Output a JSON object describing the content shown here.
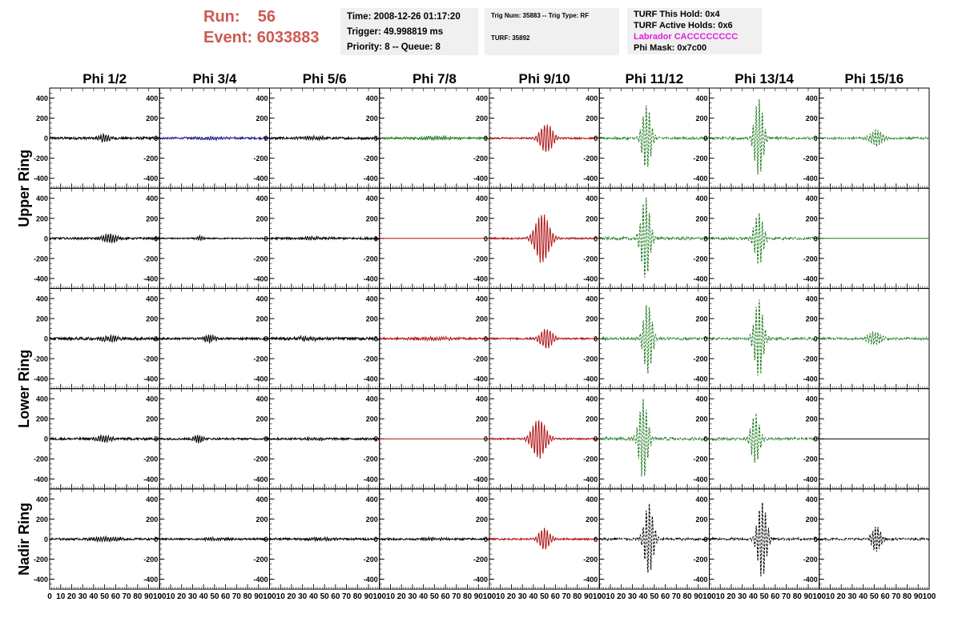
{
  "header": {
    "run_label": "Run:",
    "run_value": "56",
    "event_label": "Event:",
    "event_value": "6033883"
  },
  "info_time": {
    "time": "Time: 2008-12-26 01:17:20",
    "trigger": "Trigger: 49.998819 ms",
    "priority": "Priority: 8 -- Queue: 8"
  },
  "info_trig": {
    "trig": "Trig Num: 35883 -- Trig Type: RF",
    "turf": "TURF: 35892"
  },
  "info_turf": {
    "this_hold": "TURF This Hold: 0x4",
    "active_holds": "TURF Active Holds: 0x6",
    "labrador": "Labrador CACCCCCCCC",
    "phi_mask": "Phi Mask: 0x7c00"
  },
  "colors": {
    "accent_red": "#cc5a52",
    "labrador": "#e020e0",
    "box_bg": "#f0f0f0",
    "trace_black": "#000000",
    "trace_blue": "#1a1a8c",
    "trace_green": "#1e7a1e",
    "trace_red": "#b01515"
  },
  "chart_data": {
    "type": "line",
    "columns": [
      "Phi 1/2",
      "Phi 3/4",
      "Phi 5/6",
      "Phi 7/8",
      "Phi 9/10",
      "Phi 11/12",
      "Phi 13/14",
      "Phi 15/16"
    ],
    "ring_labels": [
      "Upper Ring",
      "Lower Ring",
      "Nadir Ring"
    ],
    "row_ring": [
      "Upper Ring",
      "Upper Ring",
      "Lower Ring",
      "Lower Ring",
      "Nadir Ring"
    ],
    "xlim": [
      0,
      100
    ],
    "ylim": [
      -500,
      500
    ],
    "yticks": [
      400,
      200,
      0,
      -200,
      -400
    ],
    "xtick_labels": [
      "0",
      "10",
      "20",
      "30",
      "40",
      "50",
      "60",
      "70",
      "80",
      "90",
      "100"
    ],
    "grid": false,
    "cells": [
      [
        {
          "color": "black",
          "style": "solid",
          "noise": 12,
          "amp": 40,
          "center": 50,
          "width": 6,
          "period": 2.2
        },
        {
          "color": "blue",
          "style": "solid",
          "noise": 10,
          "amp": 12,
          "center": 50,
          "width": 20,
          "period": 2.0
        },
        {
          "color": "black",
          "style": "solid",
          "noise": 11,
          "amp": 15,
          "center": 40,
          "width": 15,
          "period": 2.0
        },
        {
          "color": "green",
          "style": "solid",
          "noise": 10,
          "amp": 15,
          "center": 50,
          "width": 20,
          "period": 2.0
        },
        {
          "color": "red",
          "style": "solid",
          "noise": 8,
          "amp": 145,
          "center": 52,
          "width": 7,
          "period": 2.6
        },
        {
          "color": "green",
          "style": "dashed",
          "noise": 12,
          "amp": 330,
          "center": 43,
          "width": 5,
          "period": 2.8
        },
        {
          "color": "green",
          "style": "dashed",
          "noise": 12,
          "amp": 400,
          "center": 45,
          "width": 5,
          "period": 2.8
        },
        {
          "color": "green",
          "style": "dashed",
          "noise": 10,
          "amp": 80,
          "center": 52,
          "width": 7,
          "period": 2.4
        }
      ],
      [
        {
          "color": "black",
          "style": "solid",
          "noise": 10,
          "amp": 45,
          "center": 55,
          "width": 8,
          "period": 2.2
        },
        {
          "color": "black",
          "style": "solid",
          "noise": 6,
          "amp": 25,
          "center": 37,
          "width": 4,
          "period": 2.0
        },
        {
          "color": "black",
          "style": "solid",
          "noise": 10,
          "amp": 12,
          "center": 40,
          "width": 15,
          "period": 2.0
        },
        {
          "color": "red",
          "style": "solid",
          "noise": 0,
          "amp": 0,
          "center": 50,
          "width": 10,
          "period": 2.0
        },
        {
          "color": "red",
          "style": "solid",
          "noise": 8,
          "amp": 250,
          "center": 48,
          "width": 8,
          "period": 2.6
        },
        {
          "color": "green",
          "style": "dashed",
          "noise": 14,
          "amp": 410,
          "center": 42,
          "width": 5,
          "period": 2.8
        },
        {
          "color": "green",
          "style": "dashed",
          "noise": 12,
          "amp": 270,
          "center": 45,
          "width": 5,
          "period": 2.8
        },
        {
          "color": "green",
          "style": "solid",
          "noise": 0,
          "amp": 0,
          "center": 50,
          "width": 10,
          "period": 2.0
        }
      ],
      [
        {
          "color": "black",
          "style": "solid",
          "noise": 14,
          "amp": 30,
          "center": 55,
          "width": 10,
          "period": 2.2
        },
        {
          "color": "black",
          "style": "solid",
          "noise": 10,
          "amp": 40,
          "center": 45,
          "width": 6,
          "period": 2.0
        },
        {
          "color": "black",
          "style": "solid",
          "noise": 14,
          "amp": 20,
          "center": 35,
          "width": 12,
          "period": 2.0
        },
        {
          "color": "red",
          "style": "solid",
          "noise": 10,
          "amp": 15,
          "center": 50,
          "width": 20,
          "period": 2.0
        },
        {
          "color": "red",
          "style": "solid",
          "noise": 8,
          "amp": 100,
          "center": 52,
          "width": 7,
          "period": 2.6
        },
        {
          "color": "green",
          "style": "dashed",
          "noise": 12,
          "amp": 360,
          "center": 44,
          "width": 5,
          "period": 2.8
        },
        {
          "color": "green",
          "style": "dashed",
          "noise": 12,
          "amp": 400,
          "center": 45,
          "width": 5,
          "period": 2.8
        },
        {
          "color": "green",
          "style": "dashed",
          "noise": 10,
          "amp": 70,
          "center": 50,
          "width": 7,
          "period": 2.4
        }
      ],
      [
        {
          "color": "black",
          "style": "solid",
          "noise": 11,
          "amp": 35,
          "center": 50,
          "width": 8,
          "period": 2.2
        },
        {
          "color": "black",
          "style": "solid",
          "noise": 9,
          "amp": 40,
          "center": 35,
          "width": 5,
          "period": 2.0
        },
        {
          "color": "black",
          "style": "solid",
          "noise": 10,
          "amp": 15,
          "center": 40,
          "width": 12,
          "period": 2.0
        },
        {
          "color": "red",
          "style": "solid",
          "noise": 0,
          "amp": 0,
          "center": 50,
          "width": 10,
          "period": 2.0
        },
        {
          "color": "red",
          "style": "solid",
          "noise": 8,
          "amp": 200,
          "center": 45,
          "width": 8,
          "period": 2.6
        },
        {
          "color": "green",
          "style": "dashed",
          "noise": 14,
          "amp": 400,
          "center": 40,
          "width": 5,
          "period": 2.8
        },
        {
          "color": "green",
          "style": "dashed",
          "noise": 12,
          "amp": 250,
          "center": 42,
          "width": 5,
          "period": 2.8
        },
        {
          "color": "black",
          "style": "solid",
          "noise": 0,
          "amp": 0,
          "center": 50,
          "width": 10,
          "period": 2.0
        }
      ],
      [
        {
          "color": "black",
          "style": "solid",
          "noise": 10,
          "amp": 20,
          "center": 50,
          "width": 15,
          "period": 2.2
        },
        {
          "color": "black",
          "style": "solid",
          "noise": 9,
          "amp": 12,
          "center": 50,
          "width": 15,
          "period": 2.0
        },
        {
          "color": "black",
          "style": "solid",
          "noise": 10,
          "amp": 12,
          "center": 50,
          "width": 15,
          "period": 2.0
        },
        {
          "color": "black",
          "style": "solid",
          "noise": 9,
          "amp": 12,
          "center": 50,
          "width": 15,
          "period": 2.0
        },
        {
          "color": "red",
          "style": "solid",
          "noise": 8,
          "amp": 110,
          "center": 50,
          "width": 6,
          "period": 2.6
        },
        {
          "color": "black",
          "style": "dashed",
          "noise": 12,
          "amp": 360,
          "center": 45,
          "width": 5,
          "period": 2.8
        },
        {
          "color": "black",
          "style": "dashed",
          "noise": 12,
          "amp": 400,
          "center": 48,
          "width": 5,
          "period": 2.8
        },
        {
          "color": "black",
          "style": "dashed",
          "noise": 10,
          "amp": 140,
          "center": 52,
          "width": 5,
          "period": 2.4
        }
      ]
    ]
  }
}
